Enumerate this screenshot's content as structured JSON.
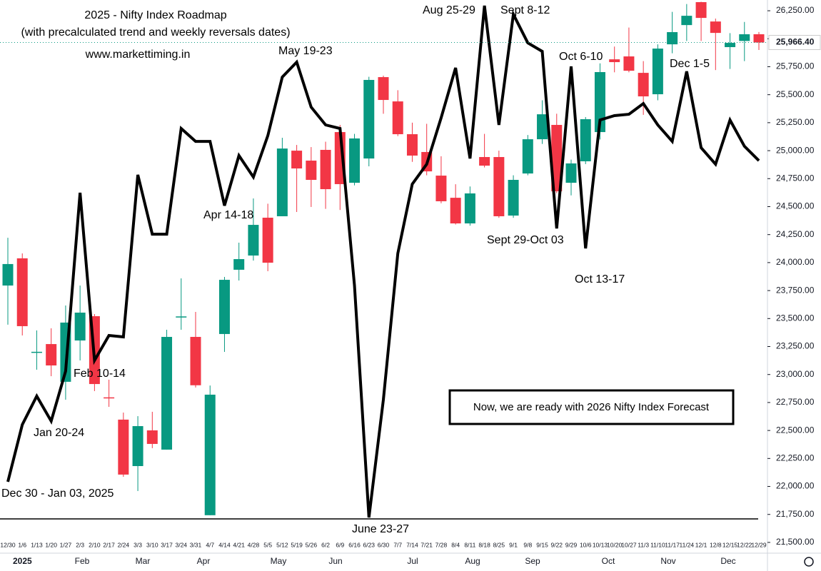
{
  "chart_data": {
    "type": "candlestick",
    "title": "2025 - Nifty Index Roadmap",
    "subtitle": "(with precalculated trend and weekly reversals dates)",
    "source": "www.markettiming.in",
    "categories": [
      "12/30",
      "1/6",
      "1/13",
      "1/20",
      "1/27",
      "2/3",
      "2/10",
      "2/17",
      "2/24",
      "3/3",
      "3/10",
      "3/17",
      "3/24",
      "3/31",
      "4/7",
      "4/14",
      "4/21",
      "4/28",
      "5/5",
      "5/12",
      "5/19",
      "5/26",
      "6/2",
      "6/9",
      "6/16",
      "6/23",
      "6/30",
      "7/7",
      "7/14",
      "7/21",
      "7/28",
      "8/4",
      "8/11",
      "8/18",
      "8/25",
      "9/1",
      "9/8",
      "9/15",
      "9/22",
      "9/29",
      "10/6",
      "10/13",
      "10/20",
      "10/27",
      "11/3",
      "11/10",
      "11/17",
      "11/24",
      "12/1",
      "12/8",
      "12/15",
      "12/22",
      "12/29"
    ],
    "x_major_labels": [
      "2025",
      "Feb",
      "Mar",
      "Apr",
      "May",
      "Jun",
      "Jul",
      "Aug",
      "Sep",
      "Oct",
      "Nov",
      "Dec"
    ],
    "open": [
      23795,
      24038,
      23200,
      23272,
      22935,
      23304,
      23521,
      22796,
      22597,
      22182,
      22501,
      22329,
      23510,
      23336,
      21743,
      23362,
      23936,
      24063,
      24401,
      24414,
      25000,
      24911,
      25007,
      25166,
      24713,
      24930,
      25657,
      25440,
      25147,
      24988,
      24777,
      24579,
      24350,
      24943,
      24943,
      24420,
      24796,
      25102,
      25230,
      24713,
      24905,
      25166,
      25816,
      25842,
      25695,
      25504,
      25950,
      26122,
      26327,
      26154,
      25925,
      25980,
      26040
    ],
    "high": [
      24222,
      24082,
      23394,
      23413,
      23617,
      23795,
      23540,
      22954,
      22660,
      22628,
      22667,
      23400,
      23859,
      23559,
      22902,
      23872,
      24178,
      24573,
      24526,
      25115,
      25051,
      25032,
      25080,
      25230,
      25150,
      25660,
      25670,
      25540,
      25250,
      25240,
      24950,
      24700,
      24680,
      25150,
      25000,
      24780,
      25140,
      25450,
      25330,
      24920,
      25300,
      25780,
      25930,
      26100,
      25800,
      25950,
      26240,
      26310,
      26330,
      26180,
      26050,
      26150,
      26060
    ],
    "low": [
      23445,
      23349,
      23043,
      22985,
      22775,
      23126,
      22852,
      22711,
      22086,
      21959,
      22342,
      22329,
      23400,
      22884,
      21743,
      23202,
      23840,
      24018,
      23923,
      24414,
      24452,
      24497,
      24480,
      24470,
      24690,
      24860,
      25330,
      25130,
      24900,
      24780,
      24530,
      24340,
      24330,
      24850,
      24400,
      24400,
      24780,
      25060,
      24620,
      24600,
      24880,
      25100,
      25700,
      25700,
      25320,
      25450,
      25870,
      25980,
      25980,
      25720,
      25730,
      25800,
      25900
    ],
    "close": [
      23987,
      23432,
      23203,
      23081,
      23464,
      23553,
      22915,
      22795,
      22106,
      22539,
      22380,
      23336,
      23519,
      22904,
      22820,
      23846,
      24031,
      24337,
      23999,
      25019,
      24841,
      24739,
      24656,
      24701,
      25109,
      25632,
      25453,
      25147,
      24956,
      24815,
      24548,
      24350,
      24618,
      24866,
      24414,
      24739,
      25102,
      25325,
      24637,
      24886,
      25281,
      25702,
      25791,
      25714,
      25485,
      25912,
      26059,
      26205,
      26186,
      26052,
      25963,
      26040,
      25966.4
    ],
    "up_color": "#089981",
    "down_color": "#f23645",
    "line_values": [
      22042,
      22552,
      22807,
      22584,
      23030,
      24624,
      23126,
      23349,
      23336,
      24784,
      24254,
      24254,
      25198,
      25083,
      25083,
      24509,
      24956,
      24764,
      25134,
      25657,
      25791,
      25389,
      25230,
      25198,
      23795,
      21723,
      22775,
      24082,
      24701,
      24879,
      25294,
      25740,
      24930,
      26295,
      25230,
      26218,
      25963,
      25887,
      24305,
      25753,
      24127,
      25274,
      25313,
      25325,
      25421,
      25230,
      25083,
      25708,
      25026,
      24879,
      25274,
      25039,
      24911
    ],
    "line_color": "#000000",
    "last_price": {
      "value": 25966.4,
      "label": "25,966.40"
    },
    "ylim": [
      21404,
      26346
    ],
    "yticks": [
      {
        "value": 21500,
        "label": "21,500.00"
      },
      {
        "value": 21750,
        "label": "21,750.00"
      },
      {
        "value": 22000,
        "label": "22,000.00"
      },
      {
        "value": 22250,
        "label": "22,250.00"
      },
      {
        "value": 22500,
        "label": "22,500.00"
      },
      {
        "value": 22750,
        "label": "22,750.00"
      },
      {
        "value": 23000,
        "label": "23,000.00"
      },
      {
        "value": 23250,
        "label": "23,250.00"
      },
      {
        "value": 23500,
        "label": "23,500.00"
      },
      {
        "value": 23750,
        "label": "23,750.00"
      },
      {
        "value": 24000,
        "label": "24,000.00"
      },
      {
        "value": 24250,
        "label": "24,250.00"
      },
      {
        "value": 24500,
        "label": "24,500.00"
      },
      {
        "value": 24750,
        "label": "24,750.00"
      },
      {
        "value": 25000,
        "label": "25,000.00"
      },
      {
        "value": 25250,
        "label": "25,250.00"
      },
      {
        "value": 25500,
        "label": "25,500.00"
      },
      {
        "value": 25750,
        "label": "25,750.00"
      },
      {
        "value": 26000,
        "label": "26,000.00"
      },
      {
        "value": 26250,
        "label": "26,250.00"
      }
    ],
    "grid": false,
    "annotations": [
      "Dec 30 - Jan 03, 2025",
      "Jan 20-24",
      "Feb 10-14",
      "Apr 14-18",
      "May 19-23",
      "June 23-27",
      "Aug 25-29",
      "Sept 8-12",
      "Oct 6-10",
      "Sept 29-Oct 03",
      "Oct 13-17",
      "Dec 1-5",
      "Now, we are ready with 2026 Nifty Index Forecast"
    ]
  }
}
